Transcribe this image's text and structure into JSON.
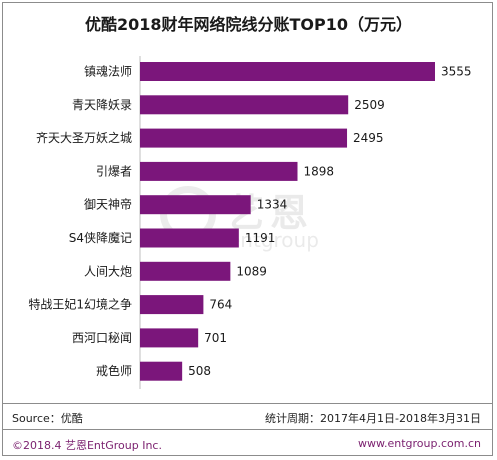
{
  "title": "优酷2018财年网络院线分账TOP10（万元）",
  "colors": {
    "bar": "#7b167b",
    "footer_text": "#7a1f6e"
  },
  "watermark": {
    "text": "艺恩",
    "sub": "entgroup"
  },
  "footer": {
    "source": "Source：优酷",
    "period": "统计周期：2017年4月1日-2018年3月31日",
    "copyright": "©2018.4  艺恩EntGroup Inc.",
    "website": "www.entgroup.com.cn"
  },
  "chart_data": {
    "type": "bar",
    "orientation": "horizontal",
    "categories": [
      "镇魂法师",
      "青天降妖录",
      "齐天大圣万妖之城",
      "引爆者",
      "御天神帝",
      "S4侠降魔记",
      "人间大炮",
      "特战王妃1幻境之争",
      "西河口秘闻",
      "戒色师"
    ],
    "values": [
      3555,
      2509,
      2495,
      1898,
      1334,
      1191,
      1089,
      764,
      701,
      508
    ],
    "xlim": [
      0,
      3555
    ]
  }
}
